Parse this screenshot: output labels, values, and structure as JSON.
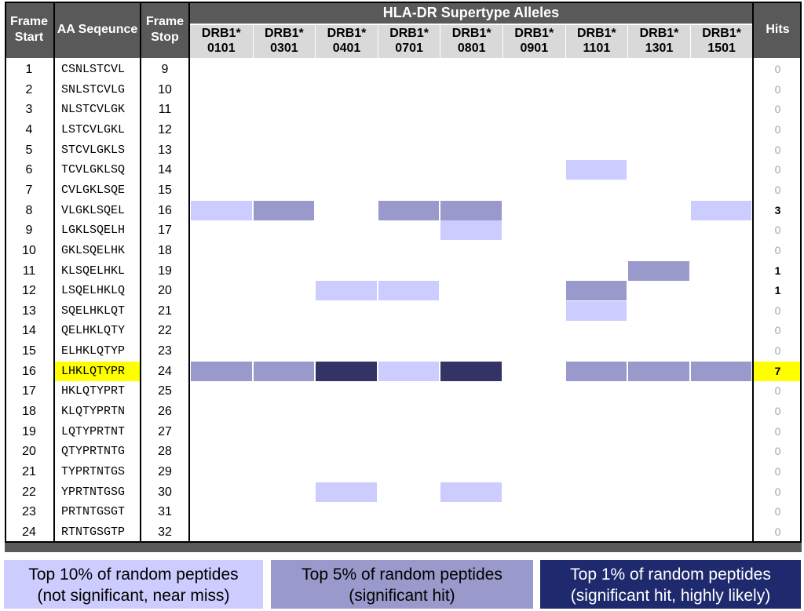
{
  "headers": {
    "frame_start": "Frame Start",
    "aa_sequence": "AA Seqeunce",
    "frame_stop": "Frame Stop",
    "supertype": "HLA-DR Supertype Alleles",
    "hits": "Hits"
  },
  "alleles": [
    {
      "line1": "DRB1*",
      "line2": "0101"
    },
    {
      "line1": "DRB1*",
      "line2": "0301"
    },
    {
      "line1": "DRB1*",
      "line2": "0401"
    },
    {
      "line1": "DRB1*",
      "line2": "0701"
    },
    {
      "line1": "DRB1*",
      "line2": "0801"
    },
    {
      "line1": "DRB1*",
      "line2": "0901"
    },
    {
      "line1": "DRB1*",
      "line2": "1101"
    },
    {
      "line1": "DRB1*",
      "line2": "1301"
    },
    {
      "line1": "DRB1*",
      "line2": "1501"
    }
  ],
  "levels": {
    "0": "",
    "1": "top-10",
    "2": "top-5",
    "3": "top-1"
  },
  "colors": {
    "top-10": "#ccccff",
    "top-5": "#9999cc",
    "top-1": "#333366",
    "highlight": "#ffff00",
    "header_dark": "#595959",
    "header_light": "#d9d9d9",
    "legend_top1_bg": "#1f2a6e"
  },
  "rows": [
    {
      "start": "1",
      "seq": "CSNLSTCVL",
      "stop": "9",
      "hits": "0",
      "levels": [
        0,
        0,
        0,
        0,
        0,
        0,
        0,
        0,
        0
      ]
    },
    {
      "start": "2",
      "seq": "SNLSTCVLG",
      "stop": "10",
      "hits": "0",
      "levels": [
        0,
        0,
        0,
        0,
        0,
        0,
        0,
        0,
        0
      ]
    },
    {
      "start": "3",
      "seq": "NLSTCVLGK",
      "stop": "11",
      "hits": "0",
      "levels": [
        0,
        0,
        0,
        0,
        0,
        0,
        0,
        0,
        0
      ]
    },
    {
      "start": "4",
      "seq": "LSTCVLGKL",
      "stop": "12",
      "hits": "0",
      "levels": [
        0,
        0,
        0,
        0,
        0,
        0,
        0,
        0,
        0
      ]
    },
    {
      "start": "5",
      "seq": "STCVLGKLS",
      "stop": "13",
      "hits": "0",
      "levels": [
        0,
        0,
        0,
        0,
        0,
        0,
        0,
        0,
        0
      ]
    },
    {
      "start": "6",
      "seq": "TCVLGKLSQ",
      "stop": "14",
      "hits": "0",
      "levels": [
        0,
        0,
        0,
        0,
        0,
        0,
        1,
        0,
        0
      ]
    },
    {
      "start": "7",
      "seq": "CVLGKLSQE",
      "stop": "15",
      "hits": "0",
      "levels": [
        0,
        0,
        0,
        0,
        0,
        0,
        0,
        0,
        0
      ]
    },
    {
      "start": "8",
      "seq": "VLGKLSQEL",
      "stop": "16",
      "hits": "3",
      "levels": [
        1,
        2,
        0,
        2,
        2,
        0,
        0,
        0,
        1
      ]
    },
    {
      "start": "9",
      "seq": "LGKLSQELH",
      "stop": "17",
      "hits": "0",
      "levels": [
        0,
        0,
        0,
        0,
        1,
        0,
        0,
        0,
        0
      ]
    },
    {
      "start": "10",
      "seq": "GKLSQELHK",
      "stop": "18",
      "hits": "0",
      "levels": [
        0,
        0,
        0,
        0,
        0,
        0,
        0,
        0,
        0
      ]
    },
    {
      "start": "11",
      "seq": "KLSQELHKL",
      "stop": "19",
      "hits": "1",
      "levels": [
        0,
        0,
        0,
        0,
        0,
        0,
        0,
        2,
        0
      ]
    },
    {
      "start": "12",
      "seq": "LSQELHKLQ",
      "stop": "20",
      "hits": "1",
      "levels": [
        0,
        0,
        1,
        1,
        0,
        0,
        2,
        0,
        0
      ]
    },
    {
      "start": "13",
      "seq": "SQELHKLQT",
      "stop": "21",
      "hits": "0",
      "levels": [
        0,
        0,
        0,
        0,
        0,
        0,
        1,
        0,
        0
      ]
    },
    {
      "start": "14",
      "seq": "QELHKLQTY",
      "stop": "22",
      "hits": "0",
      "levels": [
        0,
        0,
        0,
        0,
        0,
        0,
        0,
        0,
        0
      ]
    },
    {
      "start": "15",
      "seq": "ELHKLQTYP",
      "stop": "23",
      "hits": "0",
      "levels": [
        0,
        0,
        0,
        0,
        0,
        0,
        0,
        0,
        0
      ]
    },
    {
      "start": "16",
      "seq": "LHKLQTYPR",
      "stop": "24",
      "hits": "7",
      "levels": [
        2,
        2,
        3,
        1,
        3,
        0,
        2,
        2,
        2
      ],
      "highlight": true
    },
    {
      "start": "17",
      "seq": "HKLQTYPRT",
      "stop": "25",
      "hits": "0",
      "levels": [
        0,
        0,
        0,
        0,
        0,
        0,
        0,
        0,
        0
      ]
    },
    {
      "start": "18",
      "seq": "KLQTYPRTN",
      "stop": "26",
      "hits": "0",
      "levels": [
        0,
        0,
        0,
        0,
        0,
        0,
        0,
        0,
        0
      ]
    },
    {
      "start": "19",
      "seq": "LQTYPRTNT",
      "stop": "27",
      "hits": "0",
      "levels": [
        0,
        0,
        0,
        0,
        0,
        0,
        0,
        0,
        0
      ]
    },
    {
      "start": "20",
      "seq": "QTYPRTNTG",
      "stop": "28",
      "hits": "0",
      "levels": [
        0,
        0,
        0,
        0,
        0,
        0,
        0,
        0,
        0
      ]
    },
    {
      "start": "21",
      "seq": "TYPRTNTGS",
      "stop": "29",
      "hits": "0",
      "levels": [
        0,
        0,
        0,
        0,
        0,
        0,
        0,
        0,
        0
      ]
    },
    {
      "start": "22",
      "seq": "YPRTNTGSG",
      "stop": "30",
      "hits": "0",
      "levels": [
        0,
        0,
        1,
        0,
        1,
        0,
        0,
        0,
        0
      ]
    },
    {
      "start": "23",
      "seq": "PRTNTGSGT",
      "stop": "31",
      "hits": "0",
      "levels": [
        0,
        0,
        0,
        0,
        0,
        0,
        0,
        0,
        0
      ]
    },
    {
      "start": "24",
      "seq": "RTNTGSGTP",
      "stop": "32",
      "hits": "0",
      "levels": [
        0,
        0,
        0,
        0,
        0,
        0,
        0,
        0,
        0
      ]
    }
  ],
  "legend": [
    {
      "line1": "Top 10% of random peptides",
      "line2": "(not significant, near miss)"
    },
    {
      "line1": "Top 5% of random peptides",
      "line2": "(significant hit)"
    },
    {
      "line1": "Top 1% of random peptides",
      "line2": "(significant hit, highly likely)"
    }
  ]
}
